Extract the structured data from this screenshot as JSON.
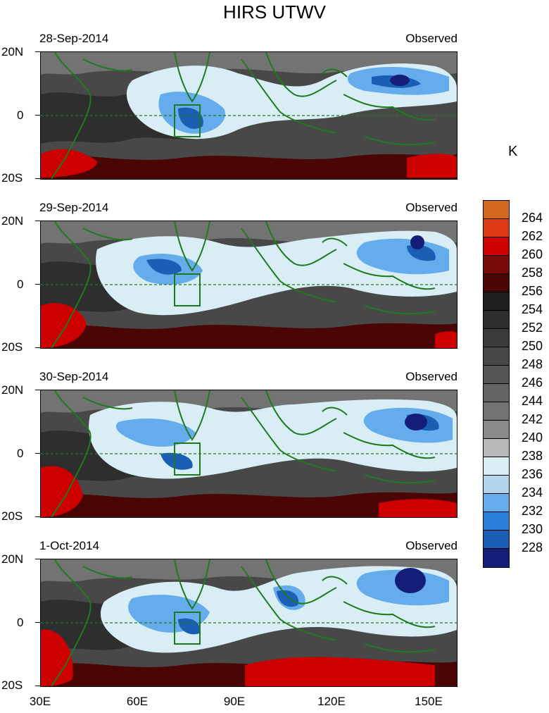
{
  "title": "HIRS UTWV",
  "colorbar": {
    "units": "K",
    "labels": [
      "264",
      "262",
      "260",
      "258",
      "256",
      "254",
      "252",
      "250",
      "248",
      "246",
      "244",
      "242",
      "240",
      "238",
      "236",
      "234",
      "232",
      "230",
      "228"
    ],
    "colors": [
      "#d2691e",
      "#e03a14",
      "#cc0000",
      "#7a0a0a",
      "#4a0505",
      "#1e1e1e",
      "#2e2e2e",
      "#3b3b3b",
      "#484848",
      "#555555",
      "#646464",
      "#737373",
      "#8a8a8a",
      "#b8b8b8",
      "#d8eef4",
      "#b0d6ec",
      "#64acec",
      "#2a7fd8",
      "#1a5fb4",
      "#141e78"
    ]
  },
  "axes": {
    "lat_labels": [
      "20N",
      "0",
      "20S"
    ],
    "lon_labels": [
      "30E",
      "60E",
      "90E",
      "120E",
      "150E"
    ]
  },
  "panels": [
    {
      "date": "28-Sep-2014",
      "status": "Observed"
    },
    {
      "date": "29-Sep-2014",
      "status": "Observed"
    },
    {
      "date": "30-Sep-2014",
      "status": "Observed"
    },
    {
      "date": "1-Oct-2014",
      "status": "Observed"
    }
  ]
}
